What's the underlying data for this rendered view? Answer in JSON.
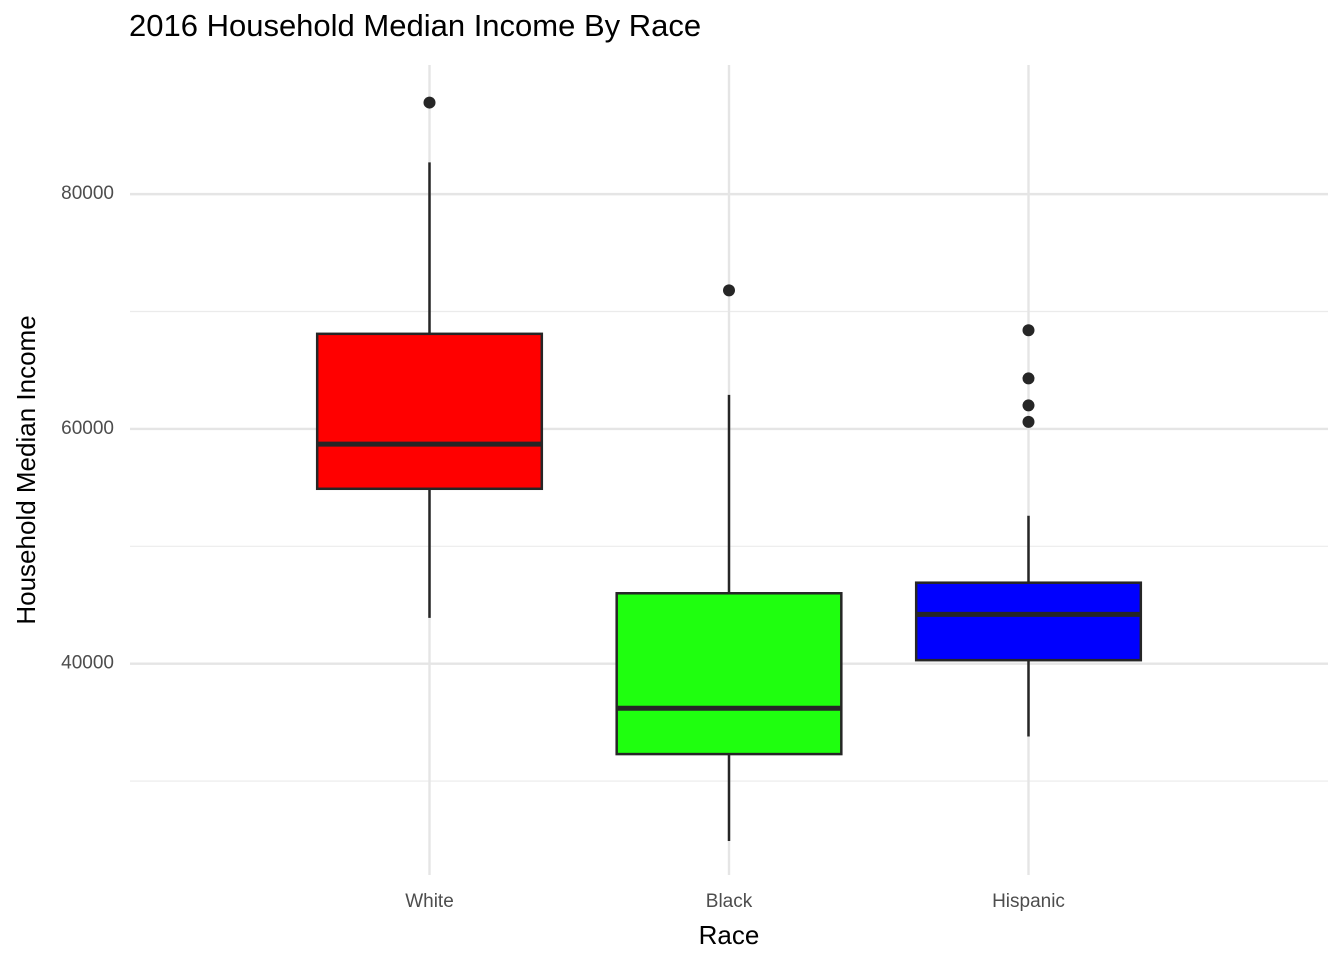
{
  "chart_data": {
    "type": "box",
    "title": "2016 Household Median Income By Race",
    "x_label": "Race",
    "y_label": "Household Median Income",
    "categories": [
      "White",
      "Black",
      "Hispanic"
    ],
    "boxes": [
      {
        "color": "#ff0000",
        "min": 43900,
        "q1": 54900,
        "median": 58700,
        "q3": 68100,
        "max": 82700,
        "outliers": [
          87800
        ]
      },
      {
        "color": "#1fff0f",
        "min": 24900,
        "q1": 32300,
        "median": 36200,
        "q3": 46000,
        "max": 62900,
        "outliers": [
          71800
        ]
      },
      {
        "color": "#0000ff",
        "min": 33800,
        "q1": 40300,
        "median": 44200,
        "q3": 46900,
        "max": 52600,
        "outliers": [
          68400,
          64300,
          62000,
          60600
        ]
      }
    ],
    "ylim": [
      22000,
      91000
    ],
    "yticks": [
      40000,
      60000,
      80000
    ],
    "minor_yticks": [
      30000,
      50000,
      70000
    ],
    "grid": true
  }
}
